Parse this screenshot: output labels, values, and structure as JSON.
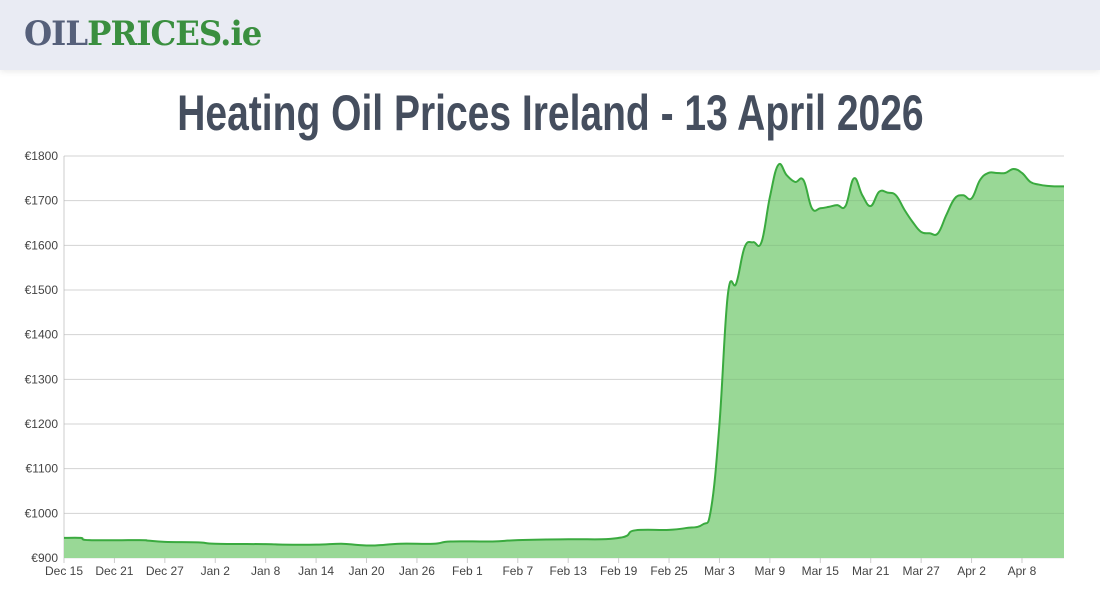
{
  "header": {
    "logo_part1": "OIL",
    "logo_part2": "PRICES.ie"
  },
  "title": "Heating Oil Prices Ireland - 13 April 2026",
  "colors": {
    "line": "#3aaa3f",
    "fill": "#93d690",
    "grid": "#e3e3e3",
    "logo_dark": "#56607a",
    "logo_green": "#3a8f3f"
  },
  "chart_data": {
    "type": "area",
    "title": "",
    "xlabel": "",
    "ylabel": "",
    "ylim": [
      900,
      1800
    ],
    "xlim": [
      "2025-12-15",
      "2026-04-13"
    ],
    "grid": true,
    "y_ticks": [
      "€900",
      "€1000",
      "€1100",
      "€1200",
      "€1300",
      "€1400",
      "€1500",
      "€1600",
      "€1700",
      "€1800"
    ],
    "x_ticks": [
      "Dec 15",
      "Dec 21",
      "Dec 27",
      "Jan 2",
      "Jan 8",
      "Jan 14",
      "Jan 20",
      "Jan 26",
      "Feb 1",
      "Feb 7",
      "Feb 13",
      "Feb 19",
      "Feb 25",
      "Mar 3",
      "Mar 9",
      "Mar 15",
      "Mar 21",
      "Mar 27",
      "Apr 2",
      "Apr 8"
    ],
    "points": [
      [
        "2025-12-15",
        945
      ],
      [
        "2025-12-17",
        945
      ],
      [
        "2025-12-18",
        940
      ],
      [
        "2025-12-24",
        940
      ],
      [
        "2025-12-25",
        939
      ],
      [
        "2025-12-27",
        936
      ],
      [
        "2025-12-31",
        935
      ],
      [
        "2026-01-02",
        932
      ],
      [
        "2026-01-08",
        931
      ],
      [
        "2026-01-10",
        930
      ],
      [
        "2026-01-14",
        930
      ],
      [
        "2026-01-17",
        932
      ],
      [
        "2026-01-19",
        929
      ],
      [
        "2026-01-21",
        928
      ],
      [
        "2026-01-24",
        932
      ],
      [
        "2026-01-28",
        932
      ],
      [
        "2026-01-30",
        937
      ],
      [
        "2026-02-04",
        937
      ],
      [
        "2026-02-07",
        940
      ],
      [
        "2026-02-13",
        942
      ],
      [
        "2026-02-17",
        942
      ],
      [
        "2026-02-19",
        945
      ],
      [
        "2026-02-20",
        950
      ],
      [
        "2026-02-21",
        962
      ],
      [
        "2026-02-25",
        963
      ],
      [
        "2026-02-27",
        967
      ],
      [
        "2026-03-01",
        975
      ],
      [
        "2026-03-02",
        1010
      ],
      [
        "2026-03-03",
        1200
      ],
      [
        "2026-03-04",
        1490
      ],
      [
        "2026-03-05",
        1515
      ],
      [
        "2026-03-06",
        1596
      ],
      [
        "2026-03-07",
        1607
      ],
      [
        "2026-03-08",
        1607
      ],
      [
        "2026-03-09",
        1708
      ],
      [
        "2026-03-10",
        1780
      ],
      [
        "2026-03-11",
        1757
      ],
      [
        "2026-03-12",
        1742
      ],
      [
        "2026-03-13",
        1746
      ],
      [
        "2026-03-14",
        1683
      ],
      [
        "2026-03-15",
        1683
      ],
      [
        "2026-03-16",
        1686
      ],
      [
        "2026-03-17",
        1690
      ],
      [
        "2026-03-18",
        1688
      ],
      [
        "2026-03-19",
        1750
      ],
      [
        "2026-03-20",
        1712
      ],
      [
        "2026-03-21",
        1688
      ],
      [
        "2026-03-22",
        1720
      ],
      [
        "2026-03-23",
        1718
      ],
      [
        "2026-03-24",
        1712
      ],
      [
        "2026-03-25",
        1680
      ],
      [
        "2026-03-26",
        1652
      ],
      [
        "2026-03-27",
        1630
      ],
      [
        "2026-03-28",
        1627
      ],
      [
        "2026-03-29",
        1627
      ],
      [
        "2026-03-30",
        1668
      ],
      [
        "2026-03-31",
        1705
      ],
      [
        "2026-04-01",
        1712
      ],
      [
        "2026-04-02",
        1705
      ],
      [
        "2026-04-03",
        1746
      ],
      [
        "2026-04-04",
        1762
      ],
      [
        "2026-04-05",
        1762
      ],
      [
        "2026-04-06",
        1762
      ],
      [
        "2026-04-07",
        1771
      ],
      [
        "2026-04-08",
        1762
      ],
      [
        "2026-04-09",
        1742
      ],
      [
        "2026-04-10",
        1736
      ],
      [
        "2026-04-11",
        1733
      ],
      [
        "2026-04-12",
        1732
      ],
      [
        "2026-04-13",
        1732
      ]
    ]
  }
}
